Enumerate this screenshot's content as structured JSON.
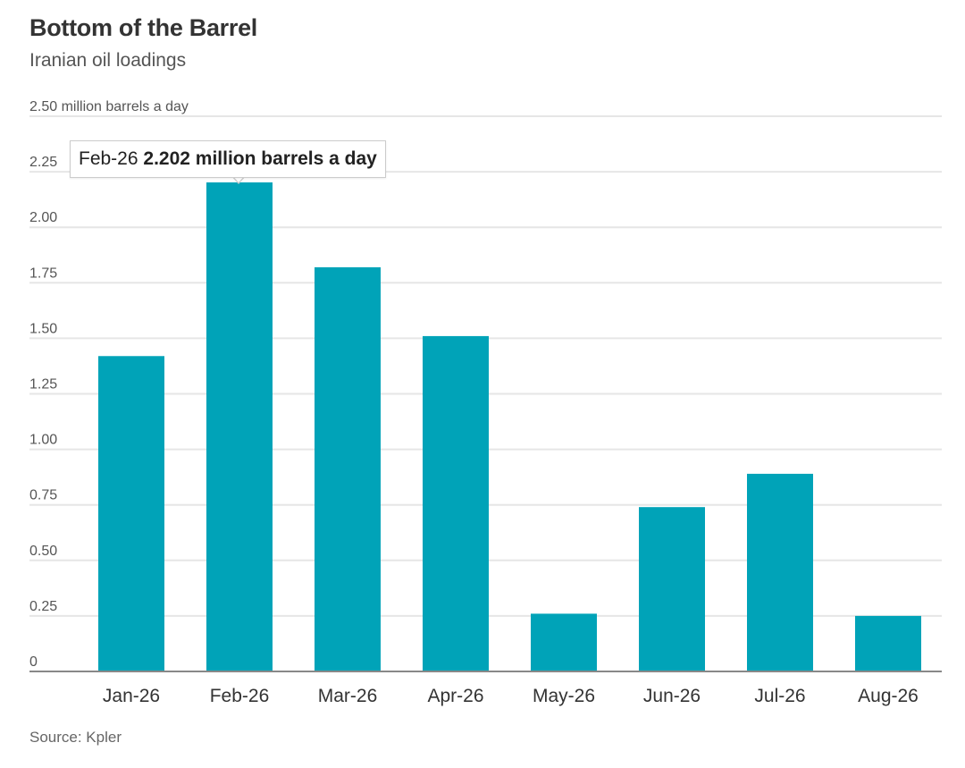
{
  "header": {
    "title": "Bottom of the Barrel",
    "subtitle": "Iranian oil loadings"
  },
  "footer": {
    "source": "Source: Kpler"
  },
  "tooltip": {
    "category": "Feb-26",
    "value_text": "2.202 million barrels a day"
  },
  "colors": {
    "bar": "#00a3b8",
    "grid": "#e6e6e6",
    "axis": "#888888"
  },
  "chart_data": {
    "type": "bar",
    "title": "Bottom of the Barrel",
    "subtitle": "Iranian oil loadings",
    "ylabel": "million barrels a day",
    "ylim": [
      0,
      2.5
    ],
    "grid": true,
    "y_ticks": [
      "0",
      "0.25",
      "0.50",
      "0.75",
      "1.00",
      "1.25",
      "1.50",
      "1.75",
      "2.00",
      "2.25",
      "2.50 million barrels a day"
    ],
    "categories": [
      "Jan-26",
      "Feb-26",
      "Mar-26",
      "Apr-26",
      "May-26",
      "Jun-26",
      "Jul-26",
      "Aug-26"
    ],
    "values": [
      1.42,
      2.202,
      1.82,
      1.51,
      0.26,
      0.74,
      0.89,
      0.25
    ]
  }
}
